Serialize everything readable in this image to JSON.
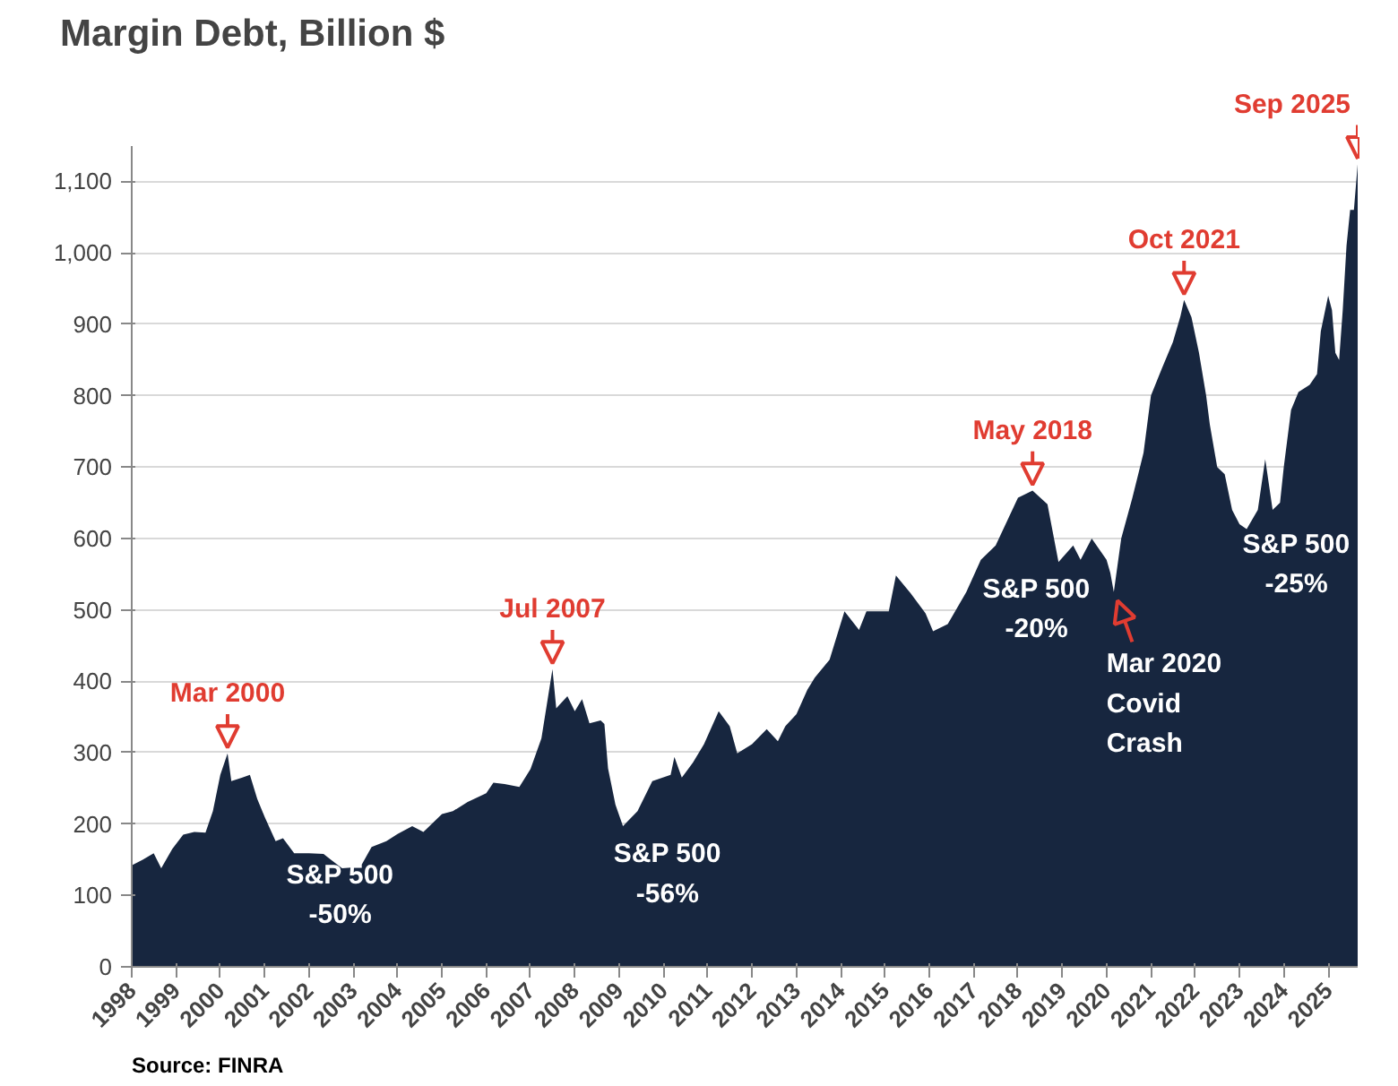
{
  "chart_data": {
    "type": "area",
    "title": "Margin Debt, Billion $",
    "x": [
      "1998-01",
      "1998-04",
      "1998-07",
      "1998-09",
      "1998-12",
      "1999-03",
      "1999-06",
      "1999-09",
      "1999-11",
      "2000-01",
      "2000-03",
      "2000-04",
      "2000-07",
      "2000-09",
      "2000-11",
      "2001-01",
      "2001-04",
      "2001-06",
      "2001-09",
      "2002-01",
      "2002-05",
      "2002-07",
      "2002-10",
      "2003-03",
      "2003-06",
      "2003-10",
      "2004-01",
      "2004-05",
      "2004-08",
      "2005-01",
      "2005-04",
      "2005-08",
      "2006-01",
      "2006-03",
      "2006-06",
      "2006-10",
      "2007-01",
      "2007-04",
      "2007-07",
      "2007-08",
      "2007-11",
      "2008-01",
      "2008-03",
      "2008-05",
      "2008-08",
      "2008-09",
      "2008-10",
      "2008-12",
      "2009-02",
      "2009-06",
      "2009-10",
      "2010-03",
      "2010-04",
      "2010-06",
      "2010-09",
      "2010-12",
      "2011-04",
      "2011-07",
      "2011-09",
      "2012-01",
      "2012-05",
      "2012-08",
      "2012-10",
      "2013-01",
      "2013-04",
      "2013-06",
      "2013-10",
      "2014-01",
      "2014-02",
      "2014-06",
      "2014-08",
      "2015-02",
      "2015-04",
      "2015-08",
      "2015-12",
      "2016-02",
      "2016-06",
      "2016-11",
      "2017-03",
      "2017-07",
      "2018-01",
      "2018-05",
      "2018-09",
      "2018-12",
      "2019-04",
      "2019-06",
      "2019-09",
      "2020-01",
      "2020-02",
      "2020-03",
      "2020-05",
      "2020-08",
      "2020-11",
      "2021-01",
      "2021-04",
      "2021-07",
      "2021-09",
      "2021-10",
      "2021-12",
      "2022-02",
      "2022-04",
      "2022-05",
      "2022-07",
      "2022-09",
      "2022-11",
      "2023-01",
      "2023-03",
      "2023-06",
      "2023-08",
      "2023-10",
      "2023-12",
      "2024-01",
      "2024-03",
      "2024-05",
      "2024-08",
      "2024-10",
      "2024-11",
      "2025-01",
      "2025-02",
      "2025-03",
      "2025-04",
      "2025-05",
      "2025-06",
      "2025-07",
      "2025-08",
      "2025-09"
    ],
    "values": [
      142,
      150,
      159,
      138,
      165,
      185,
      189,
      188,
      218,
      269,
      299,
      260,
      265,
      269,
      235,
      210,
      176,
      180,
      159,
      159,
      158,
      150,
      138,
      140,
      168,
      176,
      186,
      197,
      189,
      214,
      218,
      231,
      243,
      258,
      256,
      252,
      277,
      320,
      417,
      362,
      379,
      358,
      375,
      341,
      345,
      340,
      278,
      227,
      197,
      218,
      260,
      269,
      294,
      265,
      286,
      312,
      358,
      337,
      299,
      312,
      333,
      316,
      337,
      354,
      388,
      405,
      430,
      481,
      498,
      472,
      498,
      498,
      548,
      523,
      495,
      470,
      480,
      525,
      570,
      590,
      657,
      667,
      648,
      567,
      590,
      570,
      600,
      570,
      552,
      525,
      600,
      657,
      720,
      800,
      838,
      875,
      911,
      934,
      910,
      860,
      800,
      760,
      700,
      690,
      640,
      620,
      613,
      640,
      711,
      640,
      650,
      700,
      780,
      805,
      815,
      830,
      890,
      940,
      920,
      860,
      850,
      920,
      1010,
      1060,
      1060,
      1124
    ],
    "color": "#17263f",
    "xlim": [
      "1998-01",
      "2025-09"
    ],
    "xticks": [
      "1998",
      "1999",
      "2000",
      "2001",
      "2002",
      "2003",
      "2004",
      "2005",
      "2006",
      "2007",
      "2008",
      "2009",
      "2010",
      "2011",
      "2012",
      "2013",
      "2014",
      "2015",
      "2016",
      "2017",
      "2018",
      "2019",
      "2020",
      "2021",
      "2022",
      "2023",
      "2024",
      "2025"
    ],
    "ylim": [
      0,
      1150
    ],
    "yticks": [
      0,
      100,
      200,
      300,
      400,
      500,
      600,
      700,
      800,
      900,
      {
        "value": 1000,
        "label": "1,000"
      },
      {
        "value": 1100,
        "label": "1,100"
      }
    ],
    "grid": "y",
    "annotations": [
      {
        "text": "Mar 2000",
        "x": "2000-03",
        "y": 299
      },
      {
        "text": "Jul 2007",
        "x": "2007-07",
        "y": 417
      },
      {
        "text": "May 2018",
        "x": "2018-05",
        "y": 667
      },
      {
        "text": "Oct 2021",
        "x": "2021-10",
        "y": 934
      },
      {
        "text": "Sep 2025",
        "x": "2025-09",
        "y": 1124
      },
      {
        "text": "Mar 2020\nCovid\nCrash",
        "x": "2020-03",
        "y": 525
      },
      "S&P 500\n-50%",
      "S&P 500\n-56%",
      "S&P 500\n-20%",
      "S&P 500\n-25%",
      "Source: FINRA"
    ]
  }
}
